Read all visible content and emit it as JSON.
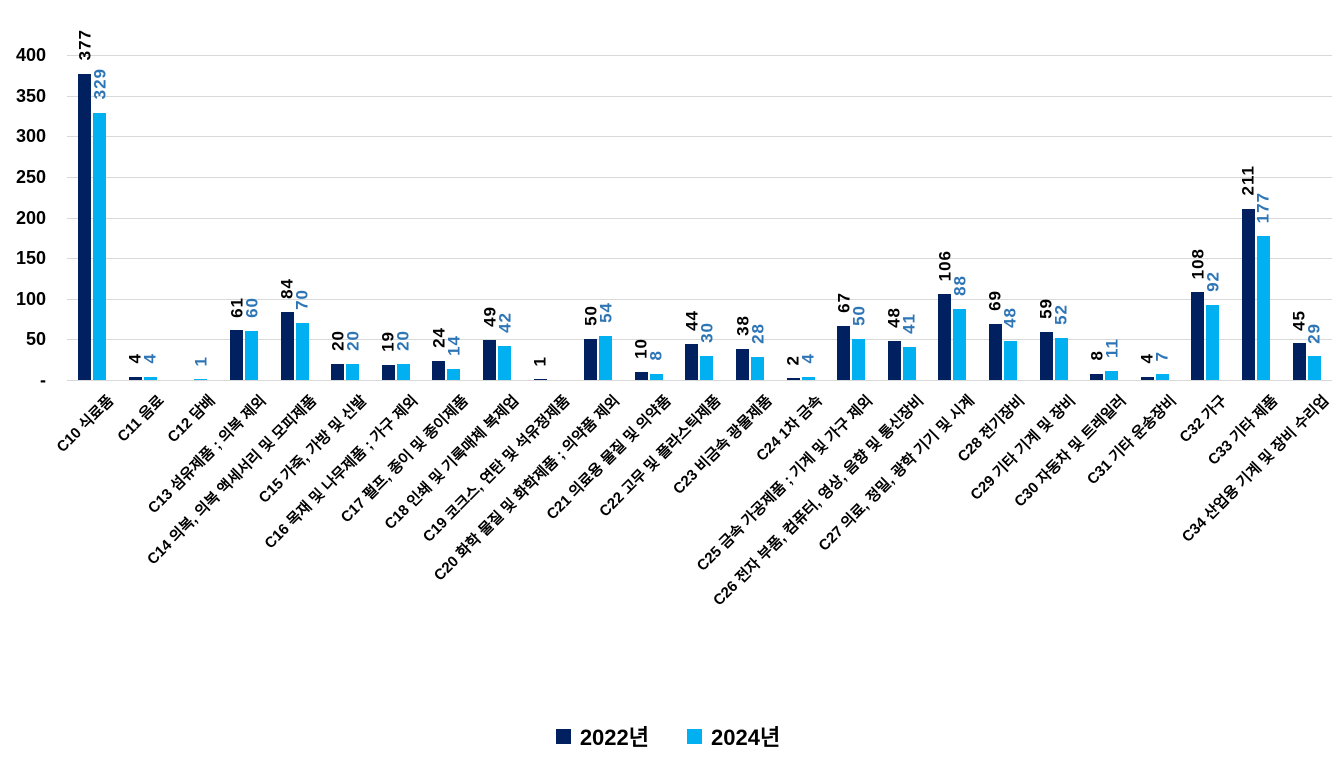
{
  "chart_data": {
    "type": "bar",
    "title": "",
    "xlabel": "",
    "ylabel": "",
    "ylim": [
      0,
      400
    ],
    "ytick_interval": 50,
    "yticks": [
      "400",
      "350",
      "300",
      "250",
      "200",
      "150",
      "100",
      "50",
      "-"
    ],
    "grid": true,
    "legend_position": "bottom",
    "value_labels": "rotated-vertical-above-bars",
    "categories": [
      "C10 식료품",
      "C11 음료",
      "C12 담배",
      "C13 섬유제품 ; 의복 제외",
      "C14 의복, 의복 액세서리 및 모피제품",
      "C15 가죽, 가방 및 신발",
      "C16 목재 및 나무제품 ; 가구 제외",
      "C17 펄프, 종이 및 종이제품",
      "C18 인쇄 및 기록매체 복제업",
      "C19 코크스, 연탄 및 석유정제품",
      "C20 화학 물질 및 화학제품 ; 의약품 제외",
      "C21 의료용 물질 및 의약품",
      "C22 고무 및 플라스틱제품",
      "C23 비금속 광물제품",
      "C24 1차 금속",
      "C25 금속 가공제품 ; 기계 및 가구 제외",
      "C26 전자 부품, 컴퓨터, 영상, 음향 및 통신장비",
      "C27 의료, 정밀, 광학 기기 및 시계",
      "C28 전기장비",
      "C29 기타 기계 및 장비",
      "C30 자동차 및 트레일러",
      "C31 기타 운송장비",
      "C32 가구",
      "C33 기타 제품",
      "C34 산업용 기계 및 장비 수리업"
    ],
    "series": [
      {
        "name": "2022년",
        "color": "#002060",
        "label_color": "#000000",
        "values": [
          377,
          4,
          null,
          61,
          84,
          20,
          19,
          24,
          49,
          1,
          50,
          10,
          44,
          38,
          2,
          67,
          48,
          106,
          69,
          59,
          8,
          4,
          108,
          211,
          45
        ]
      },
      {
        "name": "2024년",
        "color": "#00B0F0",
        "label_color": "#2E75B6",
        "values": [
          329,
          4,
          1,
          60,
          70,
          20,
          20,
          14,
          42,
          null,
          54,
          8,
          30,
          28,
          4,
          50,
          41,
          88,
          48,
          52,
          11,
          7,
          92,
          177,
          29
        ]
      }
    ],
    "colors": {
      "gridline": "#D9D9D9",
      "background": "#FFFFFF",
      "axis_text": "#000000"
    }
  }
}
